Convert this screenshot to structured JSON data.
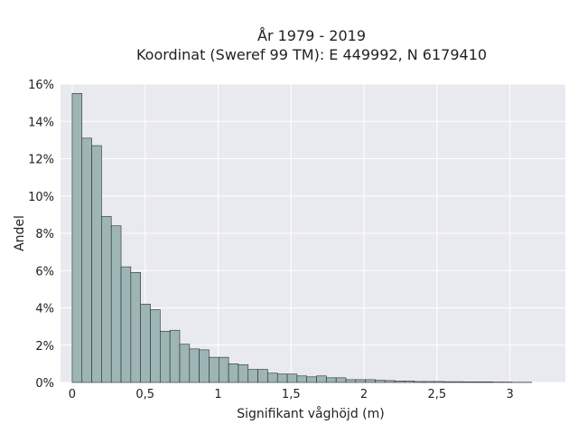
{
  "chart_data": {
    "type": "bar",
    "title": "År 1979 - 2019",
    "subtitle": "Koordinat (Sweref 99 TM): E 449992, N 6179410",
    "xlabel": "Signifikant våghöjd (m)",
    "ylabel": "Andel",
    "xlim": [
      -0.08,
      3.38
    ],
    "ylim": [
      0,
      16
    ],
    "bin_width": 0.067,
    "bin_start": 0,
    "x_ticks": [
      {
        "value": 0,
        "label": "0"
      },
      {
        "value": 0.5,
        "label": "0,5"
      },
      {
        "value": 1,
        "label": "1"
      },
      {
        "value": 1.5,
        "label": "1,5"
      },
      {
        "value": 2,
        "label": "2"
      },
      {
        "value": 2.5,
        "label": "2,5"
      },
      {
        "value": 3,
        "label": "3"
      }
    ],
    "y_ticks": [
      {
        "value": 0,
        "label": "0%"
      },
      {
        "value": 2,
        "label": "2%"
      },
      {
        "value": 4,
        "label": "4%"
      },
      {
        "value": 6,
        "label": "6%"
      },
      {
        "value": 8,
        "label": "8%"
      },
      {
        "value": 10,
        "label": "10%"
      },
      {
        "value": 12,
        "label": "12%"
      },
      {
        "value": 14,
        "label": "14%"
      },
      {
        "value": 16,
        "label": "16%"
      }
    ],
    "values": [
      15.5,
      13.1,
      12.7,
      8.9,
      8.4,
      6.2,
      5.9,
      4.2,
      3.9,
      2.75,
      2.8,
      2.05,
      1.8,
      1.75,
      1.35,
      1.35,
      1.0,
      0.95,
      0.7,
      0.7,
      0.5,
      0.45,
      0.45,
      0.35,
      0.3,
      0.35,
      0.25,
      0.25,
      0.15,
      0.15,
      0.15,
      0.12,
      0.1,
      0.08,
      0.08,
      0.05,
      0.05,
      0.05,
      0.04,
      0.04,
      0.03,
      0.03,
      0.03,
      0.02,
      0.02,
      0.01,
      0.01
    ],
    "colors": {
      "bar_fill": "#9db5b4",
      "bar_stroke": "#2c2c2c",
      "plot_background": "#e9e9f0",
      "grid": "#ffffff"
    },
    "grid": true
  }
}
